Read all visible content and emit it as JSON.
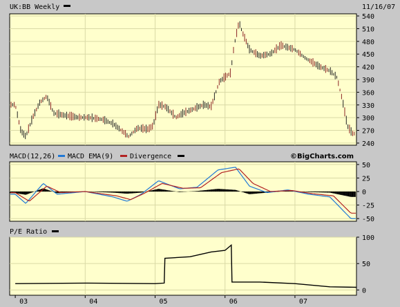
{
  "header": {
    "symbol_label": "UK:BB Weekly",
    "date_label": "11/16/07"
  },
  "macd_header": {
    "macd_label": "MACD(12,26)",
    "ema_label": "MACD EMA(9)",
    "divergence_label": "Divergence",
    "brand": "©BigCharts.com"
  },
  "pe_header": {
    "label": "P/E Ratio"
  },
  "colors": {
    "background": "#c8c8c8",
    "plot_background": "#ffffcc",
    "grid": "#d9d9a6",
    "price_bar": "#8b2323",
    "price_bar_dark": "#222222",
    "macd": "#1f78d6",
    "ema": "#b22222",
    "divergence": "#000000",
    "pe": "#000000"
  },
  "chart_data": [
    {
      "type": "line",
      "title": "UK:BB Weekly",
      "x_axis": {
        "tick_labels": [
          "03",
          "04",
          "05",
          "06",
          "07"
        ]
      },
      "ylim": [
        235,
        545
      ],
      "y_ticks": [
        240,
        270,
        300,
        330,
        360,
        390,
        420,
        450,
        480,
        510,
        540
      ],
      "price_path": [
        [
          2003.0,
          330
        ],
        [
          2003.08,
          268
        ],
        [
          2003.15,
          255
        ],
        [
          2003.25,
          300
        ],
        [
          2003.35,
          335
        ],
        [
          2003.45,
          350
        ],
        [
          2003.55,
          310
        ],
        [
          2003.7,
          305
        ],
        [
          2003.9,
          300
        ],
        [
          2004.05,
          300
        ],
        [
          2004.25,
          295
        ],
        [
          2004.4,
          285
        ],
        [
          2004.55,
          265
        ],
        [
          2004.62,
          255
        ],
        [
          2004.75,
          275
        ],
        [
          2004.9,
          272
        ],
        [
          2004.97,
          280
        ],
        [
          2005.05,
          330
        ],
        [
          2005.15,
          325
        ],
        [
          2005.3,
          300
        ],
        [
          2005.4,
          310
        ],
        [
          2005.55,
          320
        ],
        [
          2005.7,
          330
        ],
        [
          2005.8,
          325
        ],
        [
          2005.92,
          385
        ],
        [
          2006.0,
          395
        ],
        [
          2006.08,
          405
        ],
        [
          2006.13,
          470
        ],
        [
          2006.2,
          525
        ],
        [
          2006.25,
          500
        ],
        [
          2006.35,
          460
        ],
        [
          2006.5,
          445
        ],
        [
          2006.65,
          450
        ],
        [
          2006.8,
          470
        ],
        [
          2007.0,
          460
        ],
        [
          2007.15,
          440
        ],
        [
          2007.35,
          420
        ],
        [
          2007.5,
          410
        ],
        [
          2007.6,
          395
        ],
        [
          2007.68,
          340
        ],
        [
          2007.75,
          280
        ],
        [
          2007.82,
          262
        ]
      ]
    },
    {
      "type": "line",
      "series": [
        {
          "name": "MACD(12,26)",
          "values": [
            [
              2003.0,
              -5
            ],
            [
              2003.15,
              -22
            ],
            [
              2003.4,
              15
            ],
            [
              2003.6,
              -5
            ],
            [
              2004.0,
              0
            ],
            [
              2004.4,
              -10
            ],
            [
              2004.6,
              -18
            ],
            [
              2004.8,
              -5
            ],
            [
              2005.05,
              20
            ],
            [
              2005.35,
              5
            ],
            [
              2005.6,
              8
            ],
            [
              2005.9,
              40
            ],
            [
              2006.15,
              45
            ],
            [
              2006.35,
              10
            ],
            [
              2006.6,
              -2
            ],
            [
              2006.9,
              3
            ],
            [
              2007.2,
              -5
            ],
            [
              2007.5,
              -10
            ],
            [
              2007.8,
              -50
            ]
          ]
        },
        {
          "name": "MACD EMA(9)",
          "values": [
            [
              2003.0,
              -2
            ],
            [
              2003.2,
              -18
            ],
            [
              2003.45,
              10
            ],
            [
              2003.65,
              -2
            ],
            [
              2004.0,
              0
            ],
            [
              2004.45,
              -8
            ],
            [
              2004.65,
              -15
            ],
            [
              2004.85,
              -3
            ],
            [
              2005.1,
              15
            ],
            [
              2005.4,
              6
            ],
            [
              2005.65,
              7
            ],
            [
              2005.95,
              35
            ],
            [
              2006.2,
              42
            ],
            [
              2006.4,
              15
            ],
            [
              2006.65,
              0
            ],
            [
              2006.95,
              2
            ],
            [
              2007.25,
              -4
            ],
            [
              2007.55,
              -8
            ],
            [
              2007.8,
              -40
            ]
          ]
        },
        {
          "name": "Divergence",
          "values": [
            [
              2003.0,
              -3
            ],
            [
              2003.15,
              -6
            ],
            [
              2003.4,
              6
            ],
            [
              2003.6,
              -3
            ],
            [
              2004.0,
              0
            ],
            [
              2004.4,
              -2
            ],
            [
              2004.6,
              -4
            ],
            [
              2004.8,
              -2
            ],
            [
              2005.05,
              5
            ],
            [
              2005.35,
              -1
            ],
            [
              2005.6,
              1
            ],
            [
              2005.9,
              5
            ],
            [
              2006.15,
              3
            ],
            [
              2006.35,
              -5
            ],
            [
              2006.6,
              -2
            ],
            [
              2006.9,
              1
            ],
            [
              2007.2,
              -1
            ],
            [
              2007.5,
              -2
            ],
            [
              2007.8,
              -10
            ]
          ]
        }
      ],
      "ylim": [
        -55,
        55
      ],
      "y_ticks": [
        50,
        25,
        0,
        -25,
        -50
      ]
    },
    {
      "type": "line",
      "series": [
        {
          "name": "P/E Ratio",
          "values": [
            [
              2003.0,
              12
            ],
            [
              2004.0,
              13
            ],
            [
              2005.0,
              12
            ],
            [
              2005.13,
              13
            ],
            [
              2005.14,
              60
            ],
            [
              2005.5,
              63
            ],
            [
              2005.8,
              72
            ],
            [
              2006.0,
              75
            ],
            [
              2006.09,
              85
            ],
            [
              2006.1,
              15
            ],
            [
              2006.5,
              15
            ],
            [
              2007.0,
              12
            ],
            [
              2007.5,
              6
            ],
            [
              2007.88,
              5
            ]
          ]
        }
      ],
      "ylim": [
        -10,
        100
      ],
      "y_ticks": [
        100,
        50,
        0
      ]
    }
  ]
}
